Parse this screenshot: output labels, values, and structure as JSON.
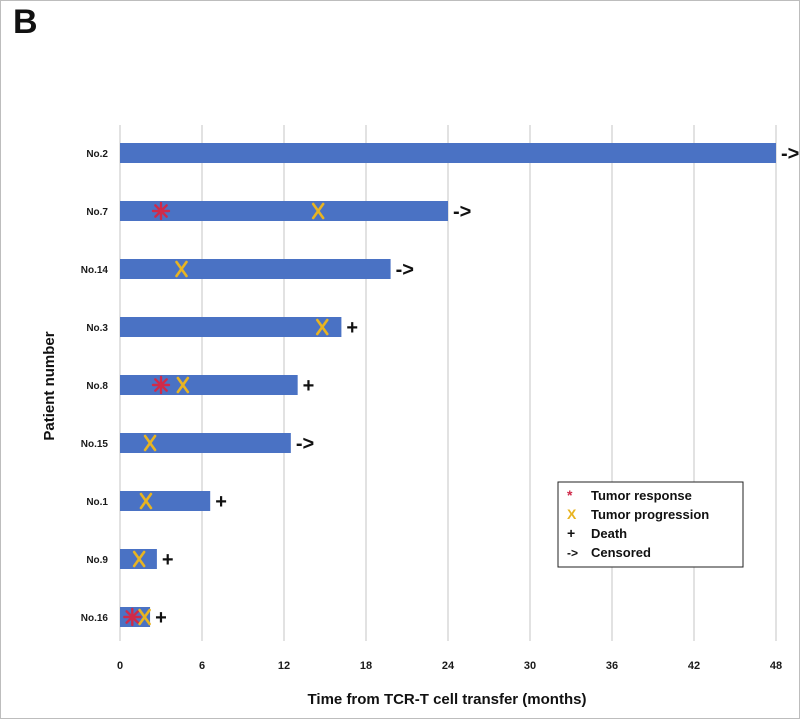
{
  "panel_label": "B",
  "chart_data": {
    "type": "swimmer",
    "xlabel": "Time from TCR-T cell transfer (months)",
    "ylabel": "Patient number",
    "xlim": [
      0,
      48
    ],
    "xticks": [
      0,
      6,
      12,
      18,
      24,
      30,
      36,
      42,
      48
    ],
    "grid": "vertical",
    "colors": {
      "bar": "#4a72c4",
      "response": "#cf2a4a",
      "progression": "#e8b421",
      "grid": "#d9d9d9"
    },
    "legend": {
      "placement": "lower-right",
      "items": [
        {
          "key": "response",
          "symbol": "*",
          "label": "Tumor response"
        },
        {
          "key": "progression",
          "symbol": "X",
          "label": "Tumor progression"
        },
        {
          "key": "death",
          "symbol": "+",
          "label": "Death"
        },
        {
          "key": "censored",
          "symbol": "->",
          "label": "Censored"
        }
      ]
    },
    "patients": [
      {
        "label": "No.2",
        "duration": 48,
        "end": "->",
        "response": [],
        "progression": []
      },
      {
        "label": "No.7",
        "duration": 24,
        "end": "->",
        "response": [
          3
        ],
        "progression": [
          14.5
        ]
      },
      {
        "label": "No.14",
        "duration": 19.8,
        "end": "->",
        "response": [],
        "progression": [
          4.5
        ]
      },
      {
        "label": "No.3",
        "duration": 16.2,
        "end": "+",
        "response": [],
        "progression": [
          14.8
        ]
      },
      {
        "label": "No.8",
        "duration": 13,
        "end": "+",
        "response": [
          3
        ],
        "progression": [
          4.6
        ]
      },
      {
        "label": "No.15",
        "duration": 12.5,
        "end": "->",
        "response": [],
        "progression": [
          2.2
        ]
      },
      {
        "label": "No.1",
        "duration": 6.6,
        "end": "+",
        "response": [],
        "progression": [
          1.9
        ]
      },
      {
        "label": "No.9",
        "duration": 2.7,
        "end": "+",
        "response": [],
        "progression": [
          1.4
        ]
      },
      {
        "label": "No.16",
        "duration": 2.2,
        "end": "+",
        "response": [
          0.9
        ],
        "progression": [
          1.8
        ]
      }
    ]
  }
}
